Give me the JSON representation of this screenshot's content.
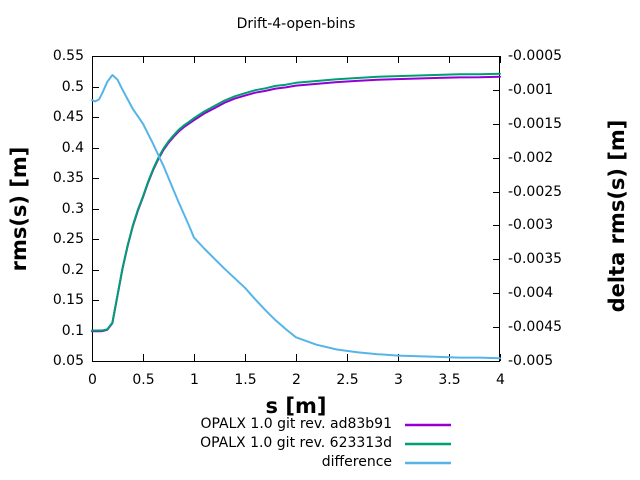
{
  "title": "Drift-4-open-bins",
  "background_color": "#ffffff",
  "text_color": "#000000",
  "frame_color": "#000000",
  "chart_data": {
    "type": "line",
    "title": "Drift-4-open-bins",
    "xlabel": "s [m]",
    "ylabel_left": "rms(s) [m]",
    "ylabel_right": "delta rms(s) [m]",
    "grid": false,
    "legend_position": "below-plot-right",
    "x_range": [
      0,
      4
    ],
    "y_left_range": [
      0.05,
      0.55
    ],
    "y_right_range": [
      -0.005,
      -0.0005
    ],
    "x_ticks": [
      "0",
      "0.5",
      "1",
      "1.5",
      "2",
      "2.5",
      "3",
      "3.5",
      "4"
    ],
    "y_left_ticks": [
      "0.05",
      "0.1",
      "0.15",
      "0.2",
      "0.25",
      "0.3",
      "0.35",
      "0.4",
      "0.45",
      "0.5",
      "0.55"
    ],
    "y_right_ticks": [
      "-0.005",
      "-0.0045",
      "-0.004",
      "-0.0035",
      "-0.003",
      "-0.0025",
      "-0.002",
      "-0.0015",
      "-0.001",
      "-0.0005"
    ],
    "x": [
      0,
      0.03,
      0.07,
      0.1,
      0.15,
      0.2,
      0.25,
      0.3,
      0.35,
      0.4,
      0.45,
      0.5,
      0.55,
      0.6,
      0.65,
      0.7,
      0.75,
      0.8,
      0.85,
      0.9,
      0.95,
      1.0,
      1.1,
      1.2,
      1.3,
      1.4,
      1.5,
      1.6,
      1.7,
      1.8,
      1.9,
      2.0,
      2.2,
      2.4,
      2.6,
      2.8,
      3.0,
      3.2,
      3.4,
      3.6,
      3.8,
      4.0
    ],
    "series": [
      {
        "name": "OPALX 1.0 git rev. ad83b91",
        "axis": "left",
        "color": "#9400d3",
        "values": [
          0.0989,
          0.0988,
          0.0989,
          0.099,
          0.1011,
          0.1122,
          0.1572,
          0.202,
          0.2389,
          0.2707,
          0.2966,
          0.3185,
          0.3424,
          0.3632,
          0.381,
          0.3959,
          0.4077,
          0.4175,
          0.4263,
          0.4332,
          0.439,
          0.4448,
          0.4557,
          0.4645,
          0.4734,
          0.4802,
          0.4851,
          0.4899,
          0.4928,
          0.4966,
          0.4985,
          0.5014,
          0.5042,
          0.5072,
          0.5091,
          0.511,
          0.5121,
          0.5131,
          0.5141,
          0.515,
          0.5151,
          0.516
        ],
        "sample_label": "purple-line"
      },
      {
        "name": "OPALX 1.0 git rev. 623313d",
        "axis": "left",
        "color": "#009e73",
        "values": [
          0.1,
          0.1,
          0.1,
          0.1,
          0.102,
          0.113,
          0.158,
          0.203,
          0.24,
          0.272,
          0.298,
          0.32,
          0.344,
          0.365,
          0.383,
          0.398,
          0.41,
          0.42,
          0.429,
          0.436,
          0.442,
          0.448,
          0.459,
          0.468,
          0.477,
          0.484,
          0.489,
          0.494,
          0.497,
          0.501,
          0.503,
          0.506,
          0.509,
          0.512,
          0.514,
          0.516,
          0.517,
          0.518,
          0.519,
          0.52,
          0.52,
          0.521
        ],
        "sample_label": "green-line"
      },
      {
        "name": "difference",
        "axis": "right",
        "color": "#56b4e9",
        "values": [
          -0.00115,
          -0.00117,
          -0.00114,
          -0.00105,
          -0.00088,
          -0.00078,
          -0.00085,
          -0.001,
          -0.00114,
          -0.00128,
          -0.00139,
          -0.0015,
          -0.00165,
          -0.0018,
          -0.00196,
          -0.00212,
          -0.0023,
          -0.00248,
          -0.00266,
          -0.00283,
          -0.003,
          -0.00318,
          -0.00334,
          -0.00349,
          -0.00364,
          -0.00378,
          -0.00392,
          -0.00409,
          -0.00425,
          -0.0044,
          -0.00453,
          -0.00465,
          -0.00476,
          -0.00483,
          -0.00487,
          -0.0049,
          -0.00492,
          -0.00493,
          -0.00494,
          -0.00495,
          -0.00495,
          -0.00496
        ],
        "sample_label": "light-blue-line"
      }
    ]
  }
}
